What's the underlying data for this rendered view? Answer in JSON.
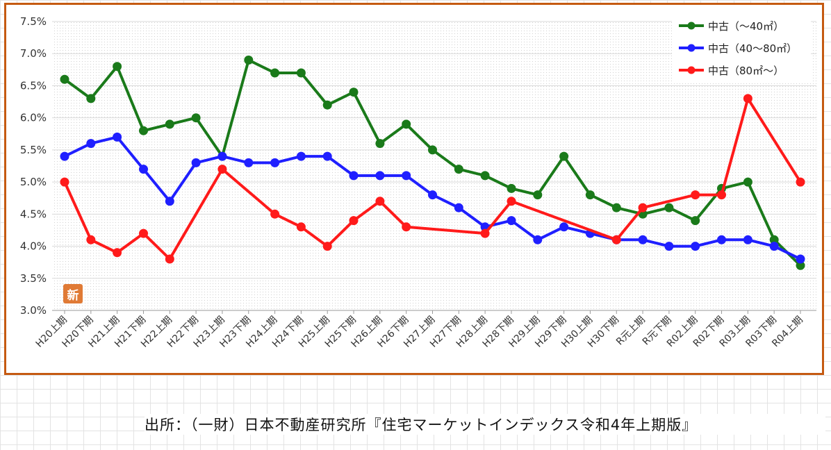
{
  "chart_data": {
    "type": "line",
    "categories": [
      "H20上期",
      "H20下期",
      "H21上期",
      "H21下期",
      "H22上期",
      "H22下期",
      "H23上期",
      "H23下期",
      "H24上期",
      "H24下期",
      "H25上期",
      "H25下期",
      "H26上期",
      "H26下期",
      "H27上期",
      "H27下期",
      "H28上期",
      "H28下期",
      "H29上期",
      "H29下期",
      "H30上期",
      "H30下期",
      "R元上期",
      "R元下期",
      "R02上期",
      "R02下期",
      "R03上期",
      "R03下期",
      "R04上期"
    ],
    "series": [
      {
        "name": "中古（～40㎡）",
        "color": "#1a7a1a",
        "values": [
          6.6,
          6.3,
          6.8,
          5.8,
          5.9,
          6.0,
          5.4,
          6.9,
          6.7,
          6.7,
          6.2,
          6.4,
          5.6,
          5.9,
          5.5,
          5.2,
          5.1,
          4.9,
          4.8,
          5.4,
          4.8,
          4.6,
          4.5,
          4.6,
          4.4,
          4.9,
          5.0,
          4.1,
          3.7
        ]
      },
      {
        "name": "中古（40～80㎡）",
        "color": "#1f1fff",
        "values": [
          5.4,
          5.6,
          5.7,
          5.2,
          4.7,
          5.3,
          5.4,
          5.3,
          5.3,
          5.4,
          5.4,
          5.1,
          5.1,
          5.1,
          4.8,
          4.6,
          4.3,
          4.4,
          4.1,
          4.3,
          4.2,
          4.1,
          4.1,
          4.0,
          4.0,
          4.1,
          4.1,
          4.0,
          3.8
        ]
      },
      {
        "name": "中古（80㎡～）",
        "color": "#ff1a1a",
        "values": [
          5.0,
          4.1,
          3.9,
          4.2,
          3.8,
          null,
          5.2,
          null,
          4.5,
          4.3,
          4.0,
          4.4,
          4.7,
          4.3,
          null,
          null,
          4.2,
          4.7,
          null,
          null,
          null,
          4.1,
          4.6,
          null,
          4.8,
          4.8,
          6.3,
          null,
          5.0
        ]
      }
    ],
    "y_ticks": [
      "3.0%",
      "3.5%",
      "4.0%",
      "4.5%",
      "5.0%",
      "5.5%",
      "6.0%",
      "6.5%",
      "7.0%",
      "7.5%"
    ],
    "ylim": [
      3.0,
      7.5
    ],
    "grid": true,
    "legend": "top-right",
    "logo_text": "新"
  },
  "source_note": "出所：（一財）日本不動産研究所『住宅マーケットインデックス令和4年上期版』"
}
